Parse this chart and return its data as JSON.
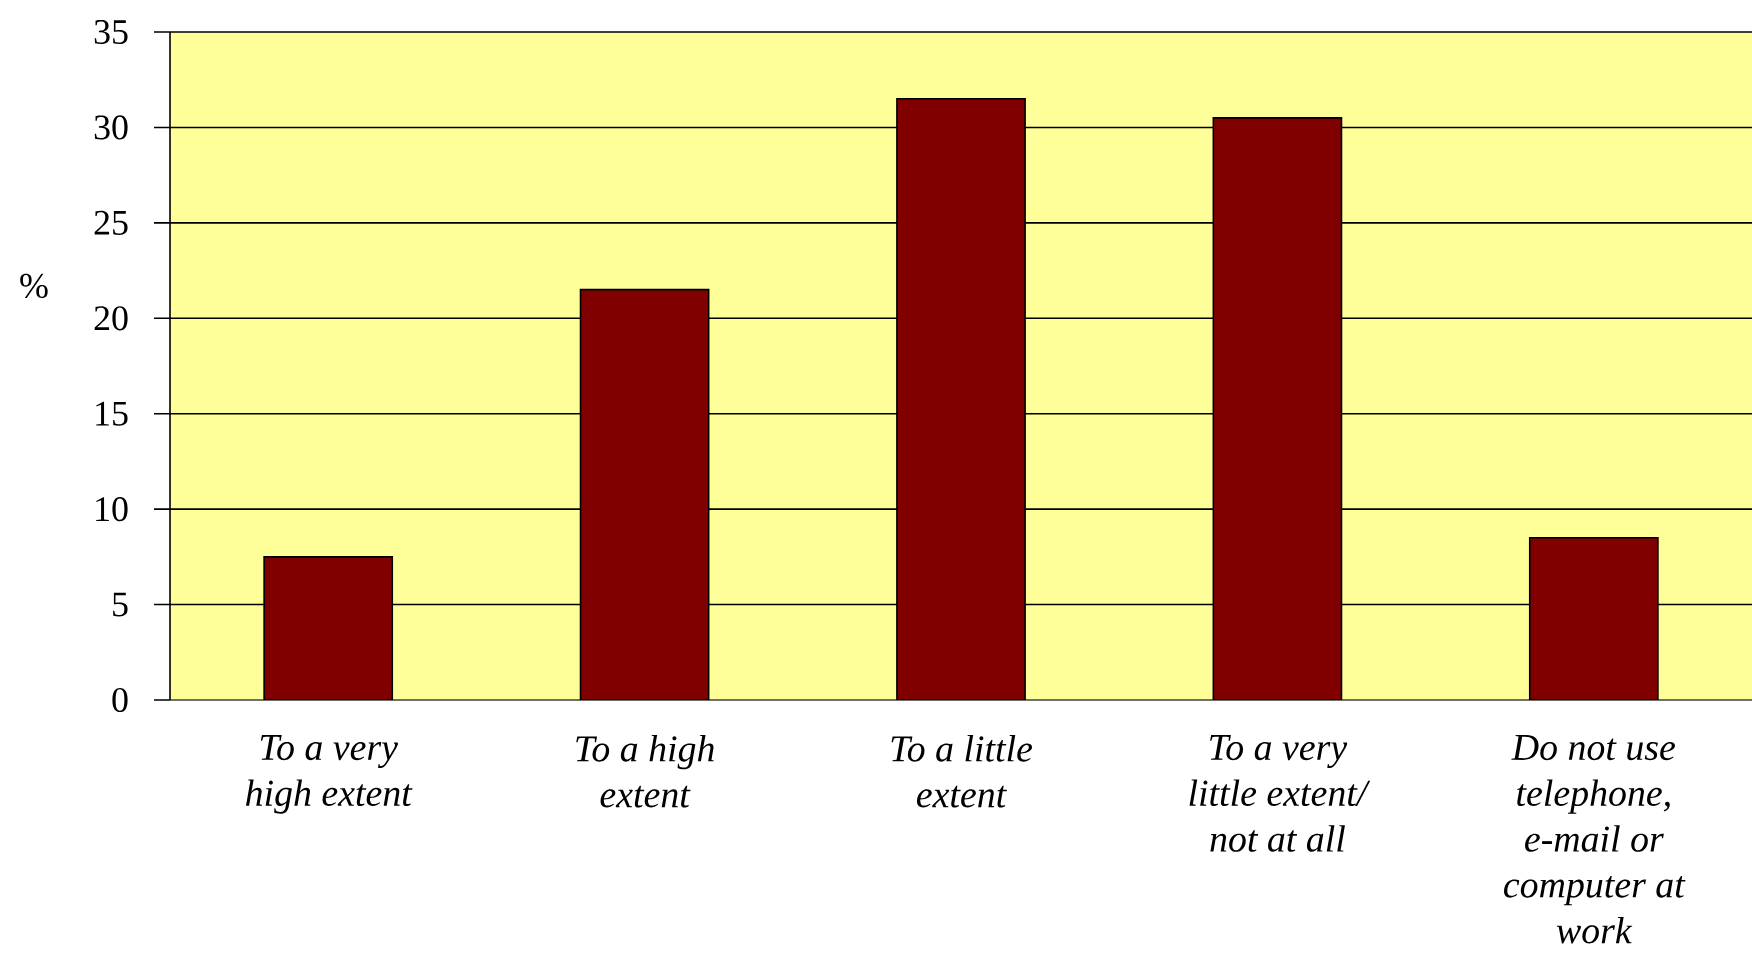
{
  "chart_data": {
    "type": "bar",
    "ylabel": "%",
    "categories": [
      "To a very high extent",
      "To a high extent",
      "To a little extent",
      "To a very little extent/ not at all",
      "Do not use telephone, e-mail or computer at work"
    ],
    "values": [
      7.5,
      21.5,
      31.5,
      30.5,
      8.5
    ],
    "color": "#800000",
    "ylim": [
      0,
      35
    ],
    "yticks": [
      0,
      5,
      10,
      15,
      20,
      25,
      30,
      35
    ],
    "grid": "y"
  }
}
